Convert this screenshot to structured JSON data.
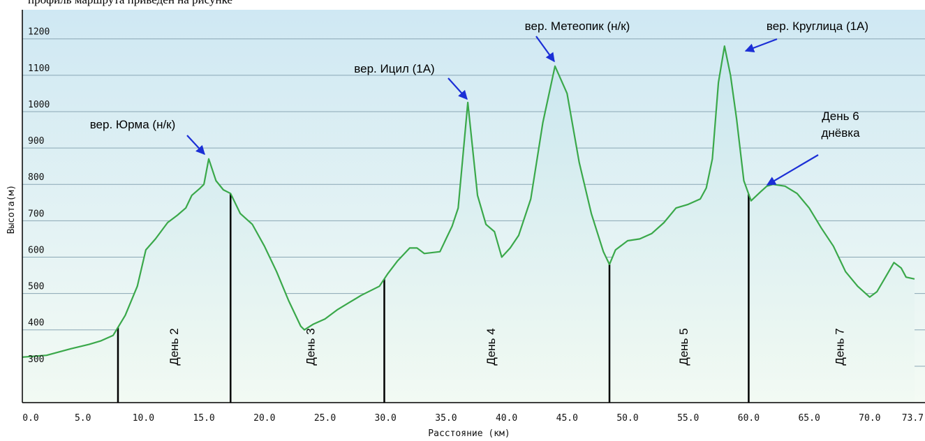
{
  "header_fragment": "профиль маршрута приведен на рисунке",
  "chart_data": {
    "type": "area",
    "xlabel": "Расстояние (км)",
    "ylabel": "Высота(м)",
    "xlim": [
      0,
      73.7
    ],
    "ylim": [
      200,
      1280
    ],
    "x_ticks": [
      0,
      5,
      10,
      15,
      20,
      25,
      30,
      35,
      40,
      45,
      50,
      55,
      60,
      65,
      70,
      73.7
    ],
    "x_tick_labels": [
      "0.0",
      "5.0",
      "10.0",
      "15.0",
      "20.0",
      "25.0",
      "30.0",
      "35.0",
      "40.0",
      "45.0",
      "50.0",
      "55.0",
      "60.0",
      "65.0",
      "70.0",
      "73.7"
    ],
    "y_ticks": [
      300,
      400,
      500,
      600,
      700,
      800,
      900,
      1000,
      1100,
      1200
    ],
    "grid": true,
    "colors": {
      "line": "#3aa84a",
      "fill_top": "#c9e6ef",
      "fill_bottom": "#f2faf3",
      "bg_top": "#cfe8f3",
      "bg_bottom": "#f4fbf4",
      "grid": "#8aa6b4",
      "arrow": "#1b2fd6",
      "day_line": "#000000"
    },
    "series": [
      {
        "points": [
          [
            0,
            325
          ],
          [
            2,
            330
          ],
          [
            4,
            348
          ],
          [
            5.5,
            360
          ],
          [
            6.5,
            370
          ],
          [
            7.5,
            385
          ],
          [
            8.5,
            440
          ],
          [
            9.5,
            520
          ],
          [
            10.2,
            620
          ],
          [
            11,
            650
          ],
          [
            12,
            695
          ],
          [
            12.8,
            715
          ],
          [
            13.5,
            735
          ],
          [
            14,
            770
          ],
          [
            14.7,
            790
          ],
          [
            15,
            800
          ],
          [
            15.4,
            870
          ],
          [
            16,
            810
          ],
          [
            16.6,
            785
          ],
          [
            17.2,
            775
          ],
          [
            18,
            720
          ],
          [
            19,
            690
          ],
          [
            20,
            630
          ],
          [
            21,
            560
          ],
          [
            22,
            480
          ],
          [
            23,
            410
          ],
          [
            23.3,
            400
          ],
          [
            24,
            415
          ],
          [
            25,
            430
          ],
          [
            26,
            455
          ],
          [
            27,
            475
          ],
          [
            28,
            495
          ],
          [
            29.5,
            520
          ],
          [
            30.2,
            555
          ],
          [
            31,
            590
          ],
          [
            32,
            625
          ],
          [
            32.6,
            625
          ],
          [
            33.2,
            610
          ],
          [
            34.5,
            615
          ],
          [
            35,
            650
          ],
          [
            35.5,
            685
          ],
          [
            36,
            735
          ],
          [
            36.8,
            1025
          ],
          [
            37.6,
            770
          ],
          [
            38.3,
            690
          ],
          [
            39,
            670
          ],
          [
            39.6,
            600
          ],
          [
            40.3,
            625
          ],
          [
            41,
            660
          ],
          [
            42,
            760
          ],
          [
            43,
            970
          ],
          [
            44,
            1125
          ],
          [
            45,
            1050
          ],
          [
            46,
            860
          ],
          [
            47,
            720
          ],
          [
            48,
            615
          ],
          [
            48.5,
            580
          ],
          [
            49,
            620
          ],
          [
            50,
            645
          ],
          [
            51,
            650
          ],
          [
            52,
            665
          ],
          [
            53,
            695
          ],
          [
            54,
            735
          ],
          [
            55,
            745
          ],
          [
            56,
            760
          ],
          [
            56.5,
            790
          ],
          [
            57,
            870
          ],
          [
            57.5,
            1080
          ],
          [
            58,
            1180
          ],
          [
            58.5,
            1100
          ],
          [
            59,
            980
          ],
          [
            59.6,
            810
          ],
          [
            60.2,
            755
          ],
          [
            61,
            780
          ],
          [
            61.5,
            795
          ],
          [
            62,
            800
          ],
          [
            63,
            795
          ],
          [
            64,
            775
          ],
          [
            65,
            735
          ],
          [
            66,
            680
          ],
          [
            67,
            630
          ],
          [
            68,
            560
          ],
          [
            69,
            520
          ],
          [
            70,
            490
          ],
          [
            70.6,
            505
          ],
          [
            71.3,
            545
          ],
          [
            72,
            585
          ],
          [
            72.6,
            570
          ],
          [
            73,
            545
          ],
          [
            73.7,
            540
          ]
        ]
      }
    ],
    "day_markers": [
      {
        "x": 7.9,
        "label": "День 2",
        "label_x": 12.5
      },
      {
        "x": 17.2,
        "label": "День 3",
        "label_x": 23.8
      },
      {
        "x": 29.9,
        "label": "День 4",
        "label_x": 38.7
      },
      {
        "x": 48.5,
        "label": "День 5",
        "label_x": 54.6
      },
      {
        "x": 60.0,
        "label": "День 7",
        "label_x": 67.5
      }
    ],
    "annotations": [
      {
        "lines": [
          "вер. Юрма (н/к)"
        ],
        "peak_x": 15.3,
        "peak_y": 870
      },
      {
        "lines": [
          "вер. Ицил (1А)"
        ],
        "peak_x": 36.7,
        "peak_y": 1030
      },
      {
        "lines": [
          "вер. Метеопик (н/к)"
        ],
        "peak_x": 43.8,
        "peak_y": 1130
      },
      {
        "lines": [
          "вер. Круглица (1А)"
        ],
        "peak_x": 58.2,
        "peak_y": 1185
      },
      {
        "lines": [
          "День 6",
          "днёвка"
        ],
        "peak_x": 60.3,
        "peak_y": 800
      }
    ]
  }
}
